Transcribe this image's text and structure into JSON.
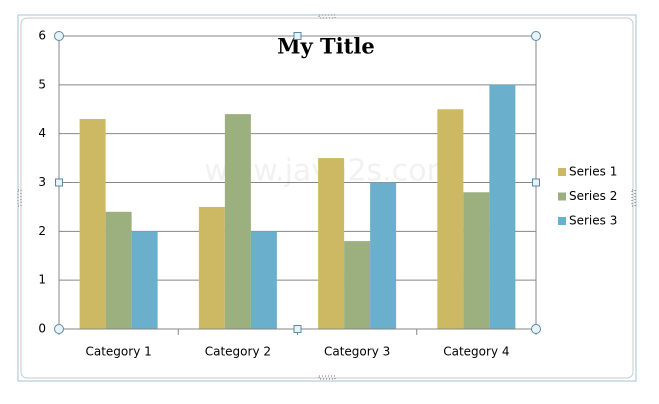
{
  "chart_data": {
    "type": "bar",
    "title": "My Title",
    "categories": [
      "Category 1",
      "Category 2",
      "Category 3",
      "Category 4"
    ],
    "series": [
      {
        "name": "Series 1",
        "color": "#cdb964",
        "values": [
          4.3,
          2.5,
          3.5,
          4.5
        ]
      },
      {
        "name": "Series 2",
        "color": "#9baf7f",
        "values": [
          2.4,
          4.4,
          1.8,
          2.8
        ]
      },
      {
        "name": "Series 3",
        "color": "#6aafcb",
        "values": [
          2,
          2,
          3,
          5
        ]
      }
    ],
    "ylim": [
      0,
      6
    ],
    "yticks": [
      0,
      1,
      2,
      3,
      4,
      5,
      6
    ],
    "grid": true,
    "legend": "right"
  },
  "watermark": "www.java2s.com"
}
